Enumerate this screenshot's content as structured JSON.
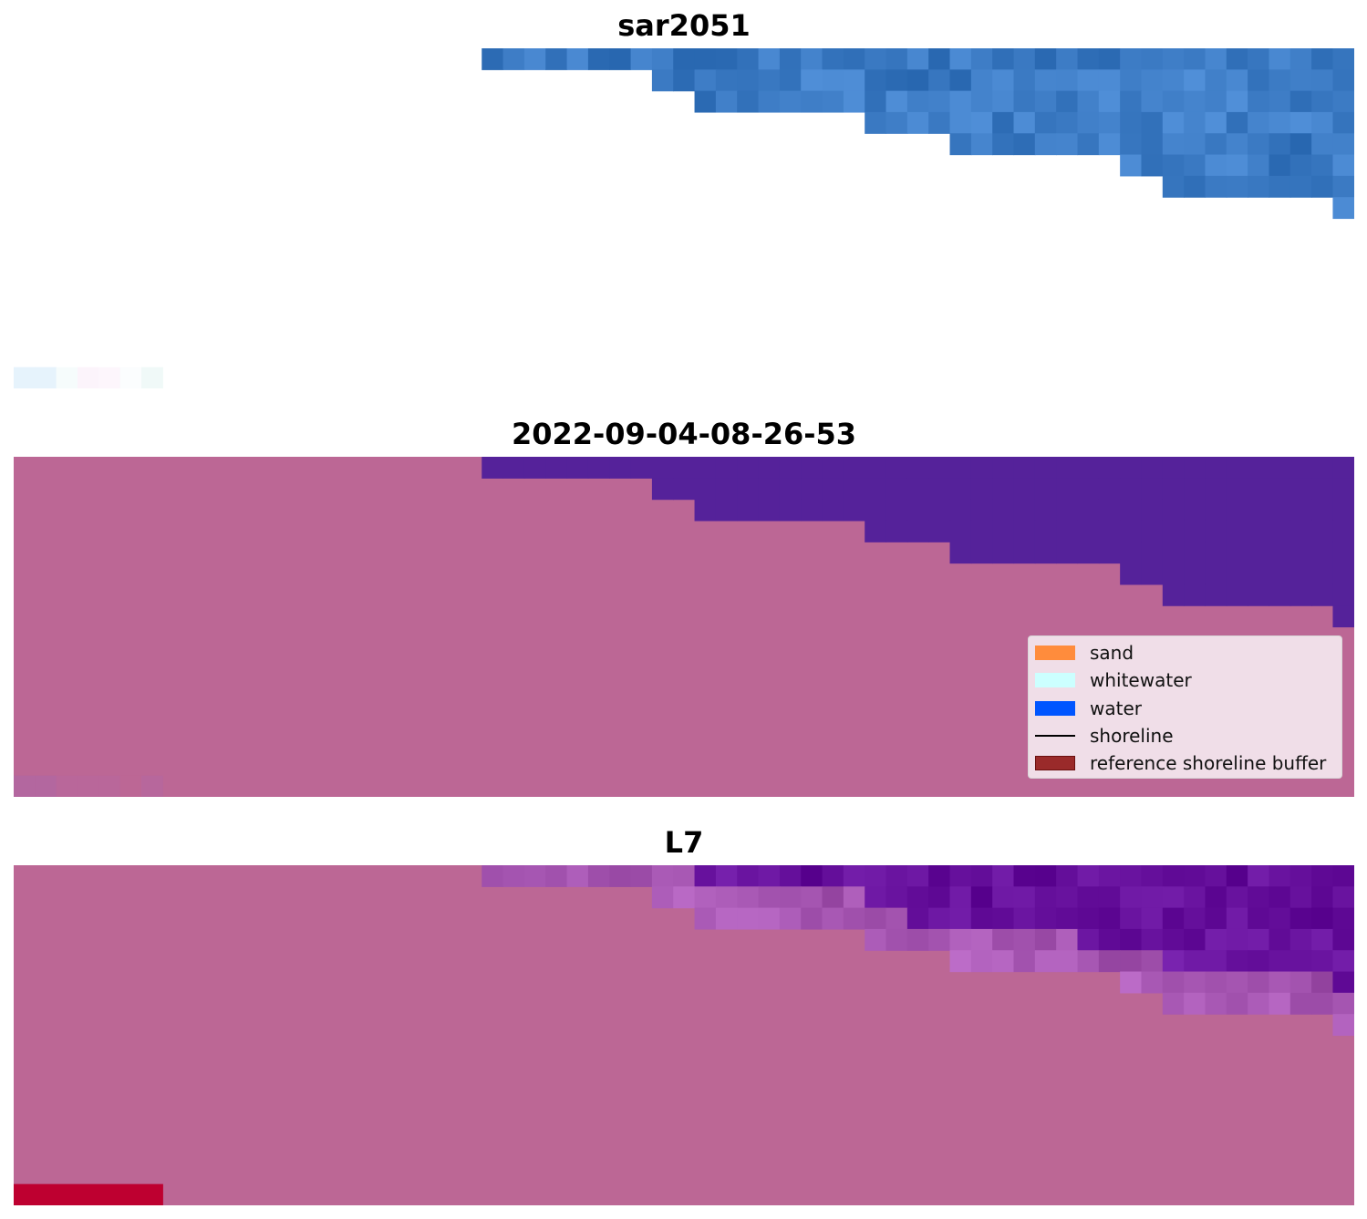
{
  "panels": [
    {
      "title": "sar2051",
      "style": "rgb"
    },
    {
      "title": "2022-09-04-08-26-53",
      "style": "classified"
    },
    {
      "title": "L7",
      "style": "index"
    }
  ],
  "legend": {
    "items": [
      {
        "label": "sand",
        "color": "#ff8c3c",
        "kind": "patch"
      },
      {
        "label": "whitewater",
        "color": "#ccffff",
        "kind": "patch"
      },
      {
        "label": "water",
        "color": "#0055ff",
        "kind": "patch"
      },
      {
        "label": "shoreline",
        "color": "#000000",
        "kind": "line"
      },
      {
        "label": "reference shoreline buffer",
        "color": "#9a2a2a",
        "kind": "patch"
      }
    ]
  },
  "colors": {
    "land": "#bc6795",
    "water_class": "#55229a",
    "index_water": "#650f9b",
    "buffer": "#be0030",
    "rgb_water": "#3c7bc4"
  }
}
